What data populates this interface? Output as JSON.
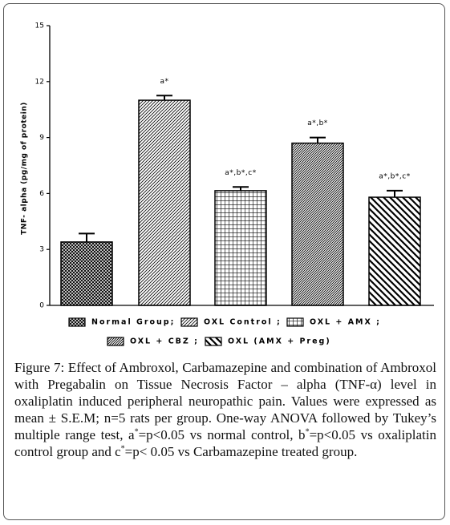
{
  "chart_data": {
    "type": "bar",
    "ylabel": "TNF- alpha (pg/mg of protein)",
    "categories": [
      "Normal Group;",
      "OXL Control ;",
      "OXL + AMX ;",
      "OXL + CBZ ;",
      "OXL (AMX + Preg)"
    ],
    "values": [
      3.4,
      11.0,
      6.15,
      8.7,
      5.8
    ],
    "errors": [
      0.45,
      0.25,
      0.2,
      0.3,
      0.35
    ],
    "annotations": [
      null,
      "a*",
      "a*,b*,c*",
      "a*,b*",
      "a*,b*,c*"
    ],
    "color": "#000000",
    "ylim": [
      0,
      15
    ],
    "yticks": [
      0,
      3,
      6,
      9,
      12,
      15
    ]
  },
  "caption": {
    "label": "Figure 7:",
    "parts": [
      " Effect of Ambroxol, Carbamazepine and combination of Ambroxol with Pregabalin on Tissue Necrosis Factor – alpha (TNF-α) level in oxaliplatin induced peripheral neuropathic pain. Values were expressed as mean ± S.E.M; n=5 rats per group. One-way ANOVA followed by Tukey’s multiple range test, a",
      "*",
      "=p<0.05 vs normal control, b",
      "*",
      "=p<0.05 vs oxaliplatin control group and c",
      "*",
      "=p< 0.05 vs Carbamazepine treated group."
    ]
  }
}
